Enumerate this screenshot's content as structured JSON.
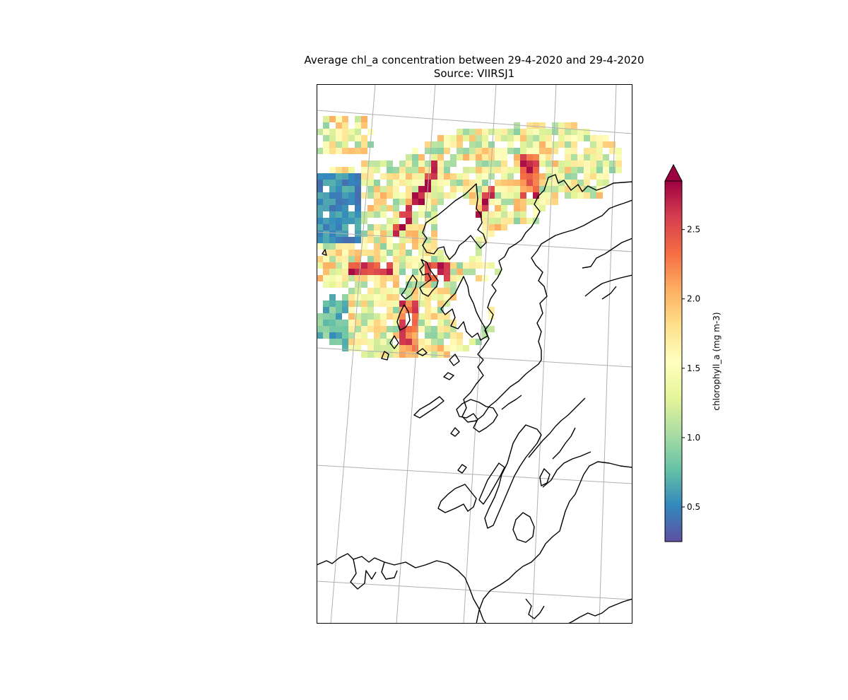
{
  "chart": {
    "title_line1": "Average chl_a concentration between 29-4-2020 and 29-4-2020",
    "title_line2": "Source: VIIRSJ1"
  },
  "colorbar": {
    "label": "chlorophyll_a (mg m-3)",
    "vmin": 0.25,
    "vmax": 2.85,
    "extend": "max",
    "colormap": "Spectral_r",
    "ticks": [
      {
        "value": 0.5,
        "label": "0.5"
      },
      {
        "value": 1.0,
        "label": "1.0"
      },
      {
        "value": 1.5,
        "label": "1.5"
      },
      {
        "value": 2.0,
        "label": "2.0"
      },
      {
        "value": 2.5,
        "label": "2.5"
      }
    ]
  },
  "colors": {
    "coastline": "#000000",
    "gridlines": "#b0b0b0",
    "colormap_stops": [
      "#5e4fa2",
      "#3288bd",
      "#66c2a5",
      "#abdda4",
      "#e6f598",
      "#ffffbf",
      "#fee08b",
      "#fdae61",
      "#f46d43",
      "#d53e4f",
      "#9e0142"
    ]
  }
}
